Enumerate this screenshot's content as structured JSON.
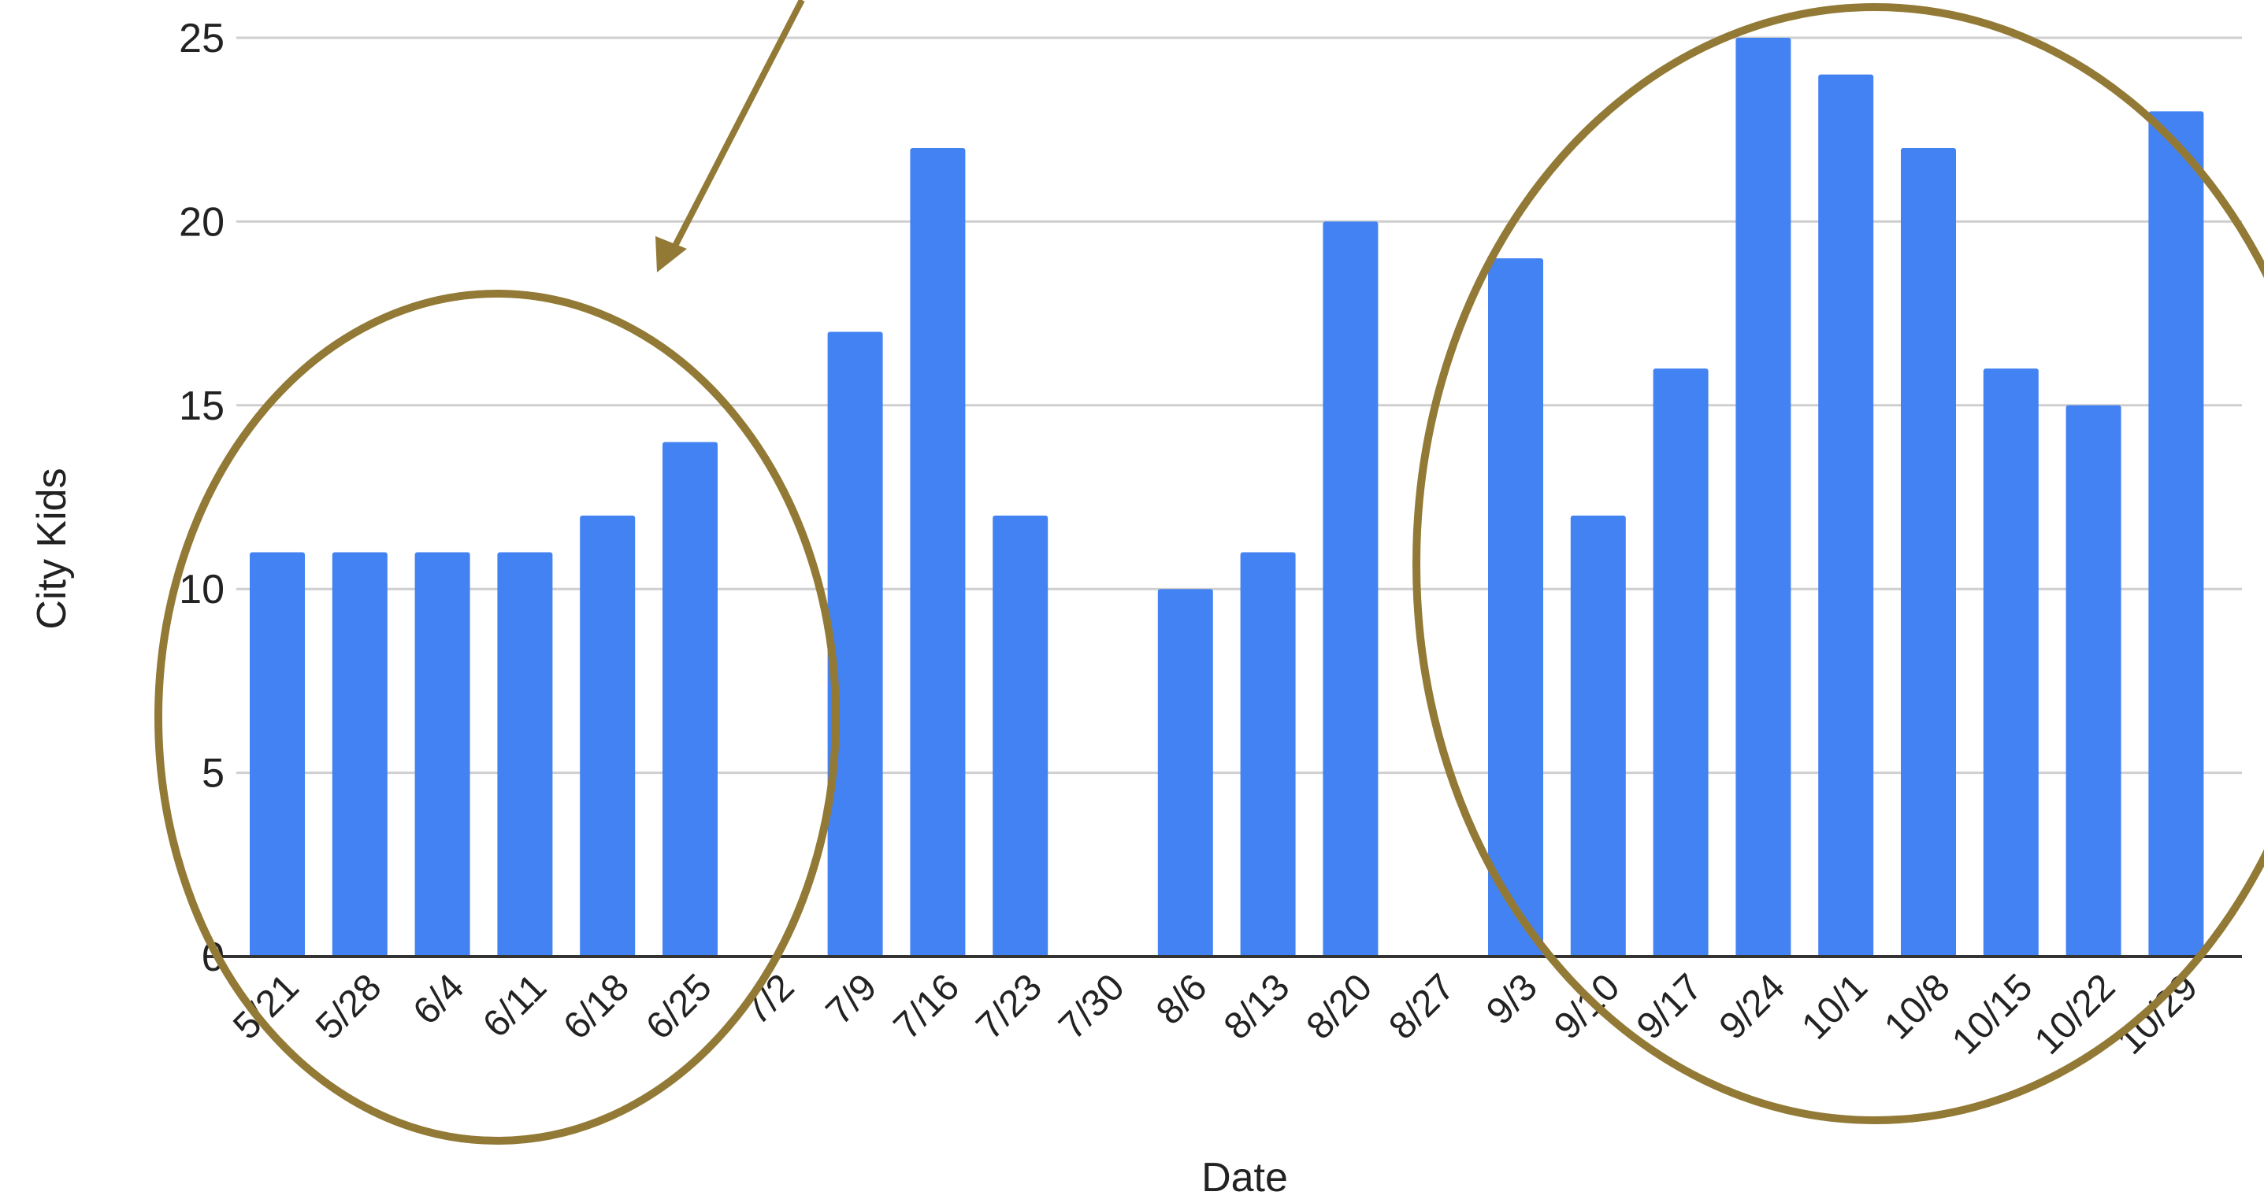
{
  "chart_data": {
    "type": "bar",
    "xlabel": "Date",
    "ylabel": "City Kids",
    "ylim": [
      0,
      25
    ],
    "yticks": [
      0,
      5,
      10,
      15,
      20,
      25
    ],
    "grid": true,
    "legend": "none",
    "categories": [
      "5/21",
      "5/28",
      "6/4",
      "6/11",
      "6/18",
      "6/25",
      "7/2",
      "7/9",
      "7/16",
      "7/23",
      "7/30",
      "8/6",
      "8/13",
      "8/20",
      "8/27",
      "9/3",
      "9/10",
      "9/17",
      "9/24",
      "10/1",
      "10/8",
      "10/15",
      "10/22",
      "10/29"
    ],
    "values": [
      11,
      11,
      11,
      11,
      12,
      14,
      0,
      17,
      22,
      12,
      0,
      10,
      11,
      20,
      0,
      19,
      12,
      16,
      25,
      24,
      22,
      16,
      15,
      23
    ],
    "bar_color": "#4382f3",
    "gridline_color": "#cfcfcf",
    "axis_color": "#333333",
    "annotation_color": "#927a36"
  }
}
